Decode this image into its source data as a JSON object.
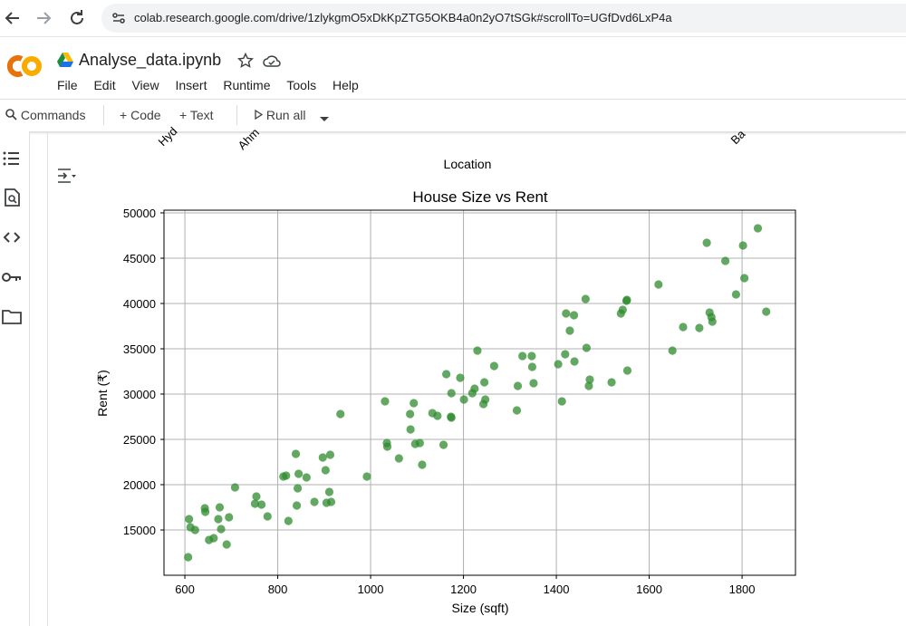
{
  "browser": {
    "url": "colab.research.google.com/drive/1zlykgmO5xDkKpZTG5OKB4a0n2yO7tSGk#scrollTo=UGfDvd6LxP4a",
    "back_icon": "arrow-left-icon",
    "forward_icon": "arrow-right-icon",
    "reload_icon": "reload-icon"
  },
  "app": {
    "logo_text": "CO",
    "filename": "Analyse_data.ipynb",
    "menu": [
      "File",
      "Edit",
      "View",
      "Insert",
      "Runtime",
      "Tools",
      "Help"
    ]
  },
  "toolbar": {
    "commands": "Commands",
    "code": "Code",
    "text": "Text",
    "run_all": "Run all"
  },
  "previous_plot": {
    "xlabel": "Location",
    "partial_ticks": [
      "Hyd",
      "Ahm",
      "Ba"
    ]
  },
  "colors": {
    "point": "#2e8b2e",
    "logo_orange": "#f9ab00",
    "logo_dark": "#e8710a"
  },
  "chart_data": {
    "type": "scatter",
    "title": "House Size vs Rent",
    "xlabel": "Size (sqft)",
    "ylabel": "Rent (₹)",
    "xlim": [
      555,
      1915
    ],
    "ylim": [
      10000,
      50300
    ],
    "xticks": [
      600,
      800,
      1000,
      1200,
      1400,
      1600,
      1800
    ],
    "yticks": [
      15000,
      20000,
      25000,
      30000,
      35000,
      40000,
      45000,
      50000
    ],
    "grid": true,
    "series": [
      {
        "points": [
          [
            607,
            12000
          ],
          [
            609,
            16200
          ],
          [
            612,
            15300
          ],
          [
            622,
            15000
          ],
          [
            643,
            17400
          ],
          [
            644,
            17000
          ],
          [
            652,
            13900
          ],
          [
            662,
            14100
          ],
          [
            672,
            16200
          ],
          [
            675,
            17500
          ],
          [
            678,
            15100
          ],
          [
            690,
            13400
          ],
          [
            695,
            16400
          ],
          [
            708,
            19700
          ],
          [
            751,
            17900
          ],
          [
            754,
            18700
          ],
          [
            765,
            17800
          ],
          [
            778,
            16500
          ],
          [
            812,
            20900
          ],
          [
            818,
            21000
          ],
          [
            823,
            16000
          ],
          [
            839,
            23400
          ],
          [
            841,
            17700
          ],
          [
            843,
            19600
          ],
          [
            845,
            21200
          ],
          [
            862,
            20800
          ],
          [
            879,
            18100
          ],
          [
            897,
            23000
          ],
          [
            903,
            21600
          ],
          [
            905,
            18000
          ],
          [
            911,
            19200
          ],
          [
            913,
            23300
          ],
          [
            915,
            18100
          ],
          [
            935,
            27800
          ],
          [
            992,
            20900
          ],
          [
            1031,
            29200
          ],
          [
            1035,
            24600
          ],
          [
            1036,
            24200
          ],
          [
            1061,
            22900
          ],
          [
            1085,
            27800
          ],
          [
            1086,
            26100
          ],
          [
            1093,
            29000
          ],
          [
            1096,
            24500
          ],
          [
            1106,
            24600
          ],
          [
            1111,
            22200
          ],
          [
            1133,
            27900
          ],
          [
            1144,
            27600
          ],
          [
            1157,
            24400
          ],
          [
            1163,
            32200
          ],
          [
            1173,
            27500
          ],
          [
            1174,
            27400
          ],
          [
            1174,
            30100
          ],
          [
            1193,
            31800
          ],
          [
            1201,
            29400
          ],
          [
            1219,
            30100
          ],
          [
            1224,
            30600
          ],
          [
            1230,
            34800
          ],
          [
            1243,
            28900
          ],
          [
            1245,
            31300
          ],
          [
            1247,
            29400
          ],
          [
            1266,
            33100
          ],
          [
            1315,
            28200
          ],
          [
            1317,
            30900
          ],
          [
            1327,
            34200
          ],
          [
            1347,
            34200
          ],
          [
            1348,
            33000
          ],
          [
            1351,
            31200
          ],
          [
            1404,
            33300
          ],
          [
            1412,
            29200
          ],
          [
            1419,
            34400
          ],
          [
            1421,
            38900
          ],
          [
            1429,
            37000
          ],
          [
            1438,
            38700
          ],
          [
            1439,
            33600
          ],
          [
            1463,
            40500
          ],
          [
            1465,
            35100
          ],
          [
            1470,
            30900
          ],
          [
            1472,
            31600
          ],
          [
            1519,
            31300
          ],
          [
            1539,
            38900
          ],
          [
            1543,
            39300
          ],
          [
            1551,
            40300
          ],
          [
            1552,
            40400
          ],
          [
            1553,
            32600
          ],
          [
            1620,
            42100
          ],
          [
            1650,
            34800
          ],
          [
            1673,
            37400
          ],
          [
            1708,
            37300
          ],
          [
            1724,
            46700
          ],
          [
            1730,
            39000
          ],
          [
            1734,
            38500
          ],
          [
            1736,
            38000
          ],
          [
            1764,
            44700
          ],
          [
            1787,
            41000
          ],
          [
            1802,
            46400
          ],
          [
            1805,
            42800
          ],
          [
            1834,
            48300
          ],
          [
            1852,
            39100
          ]
        ]
      }
    ]
  }
}
